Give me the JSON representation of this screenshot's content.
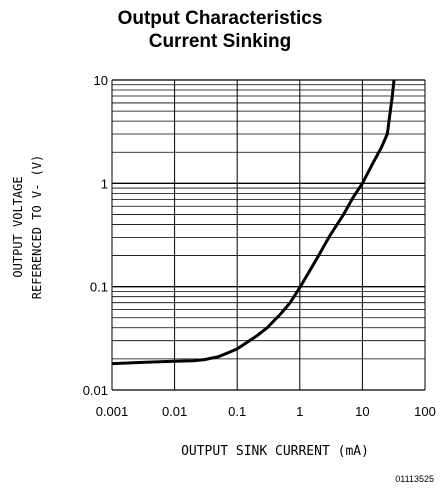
{
  "chart_data": {
    "type": "line",
    "title": "Output Characteristics",
    "subtitle": "Current Sinking",
    "xlabel": "OUTPUT SINK CURRENT (mA)",
    "ylabel_line1": "OUTPUT VOLTAGE",
    "ylabel_line2": "REFERENCED TO V- (V)",
    "x_scale": "log",
    "y_scale": "log",
    "xlim": [
      0.001,
      100
    ],
    "ylim": [
      0.01,
      10
    ],
    "x_ticks": [
      "0.001",
      "0.01",
      "0.1",
      "1",
      "10",
      "100"
    ],
    "y_ticks": [
      "10",
      "1",
      "0.1",
      "0.01"
    ],
    "grid": true,
    "series": [
      {
        "x": [
          0.001,
          0.003,
          0.01,
          0.02,
          0.03,
          0.05,
          0.07,
          0.1,
          0.2,
          0.3,
          0.5,
          0.7,
          1,
          2,
          3,
          5,
          7,
          10,
          15,
          20,
          25,
          30,
          32
        ],
        "y": [
          0.018,
          0.0185,
          0.019,
          0.0192,
          0.0197,
          0.021,
          0.0228,
          0.025,
          0.033,
          0.04,
          0.055,
          0.07,
          0.098,
          0.2,
          0.31,
          0.5,
          0.72,
          1.0,
          1.6,
          2.2,
          3.0,
          7.0,
          10
        ]
      }
    ],
    "color": "#000000"
  },
  "figure_code": "01113525"
}
